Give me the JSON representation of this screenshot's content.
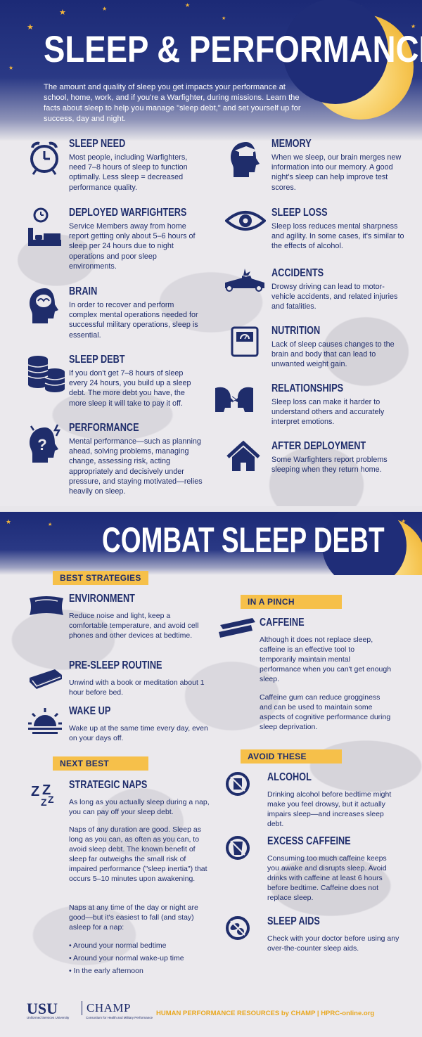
{
  "header": {
    "title": "SLEEP & PERFORMANCE",
    "intro": "The amount and quality of sleep you get impacts your performance at school, home, work, and if you're a Warfighter, during missions. Learn the facts about sleep to help you manage \"sleep debt,\" and set yourself up for success, day and night."
  },
  "facts_left": [
    {
      "title": "SLEEP NEED",
      "text": "Most people, including Warfighters, need 7–8 hours of sleep to function optimally. Less sleep = decreased performance quality.",
      "icon": "alarm-clock-icon"
    },
    {
      "title": "DEPLOYED WARFIGHTERS",
      "text": "Service Members away from home report getting only about 5–6 hours of sleep per 24 hours due to night operations and poor sleep environments.",
      "icon": "bed-clock-icon"
    },
    {
      "title": "BRAIN",
      "text": "In order to recover and perform complex mental operations needed for successful military operations, sleep is essential.",
      "icon": "brain-head-icon"
    },
    {
      "title": "SLEEP DEBT",
      "text": "If you don't get 7–8 hours of sleep every 24 hours, you build up a sleep debt. The more debt you have, the more sleep it will take to pay it off.",
      "icon": "coin-stack-icon"
    },
    {
      "title": "PERFORMANCE",
      "text": "Mental performance—such as planning ahead, solving problems, managing change, assessing risk, acting appropriately and decisively under pressure, and staying motivated—relies heavily on sleep.",
      "icon": "question-head-icon"
    }
  ],
  "facts_right": [
    {
      "title": "MEMORY",
      "text": "When we sleep, our brain merges new information into our memory. A good night's sleep can help improve test scores.",
      "icon": "graduation-head-icon"
    },
    {
      "title": "SLEEP LOSS",
      "text": "Sleep loss reduces mental sharpness and agility. In some cases, it's similar to the effects of alcohol.",
      "icon": "eye-icon"
    },
    {
      "title": "ACCIDENTS",
      "text": "Drowsy driving can lead to motor-vehicle accidents, and related injuries and fatalities.",
      "icon": "car-crash-icon"
    },
    {
      "title": "NUTRITION",
      "text": "Lack of sleep causes changes to the brain and body that can lead to unwanted weight gain.",
      "icon": "scale-icon"
    },
    {
      "title": "RELATIONSHIPS",
      "text": "Sleep loss can make it harder to understand others and accurately interpret emotions.",
      "icon": "two-heads-icon"
    },
    {
      "title": "AFTER DEPLOYMENT",
      "text": "Some Warfighters report problems sleeping when they return home.",
      "icon": "house-icon"
    }
  ],
  "combat": {
    "title": "COMBAT SLEEP DEBT",
    "best_label": "BEST STRATEGIES",
    "best": [
      {
        "title": "ENVIRONMENT",
        "text": "Reduce noise and light, keep a comfortable temperature, and avoid cell phones and other devices at bedtime.",
        "icon": "pillow-icon"
      },
      {
        "title": "PRE-SLEEP ROUTINE",
        "text": "Unwind with a book or meditation about 1 hour before bed.",
        "icon": "book-icon"
      },
      {
        "title": "WAKE UP",
        "text": "Wake up at the same time every day, even on your days off.",
        "icon": "sunrise-icon"
      }
    ],
    "next_label": "NEXT BEST",
    "naps": {
      "title": "STRATEGIC NAPS",
      "p1": "As long as you actually sleep during a nap, you can pay off your sleep debt.",
      "p2": "Naps of any duration are good. Sleep as long as you can, as often as you can, to avoid sleep debt. The known benefit of sleep far outweighs the small risk of impaired performance (\"sleep inertia\") that occurs 5–10 minutes upon awakening.",
      "p3": "Naps at any time of the day or night are good—but it's easiest to fall (and stay) asleep for a nap:",
      "bullets": [
        "Around your normal bedtime",
        "Around your normal wake-up time",
        "In the early afternoon"
      ],
      "icon": "zzz-icon"
    },
    "pinch_label": "IN A PINCH",
    "caffeine": {
      "title": "CAFFEINE",
      "p1": "Although it does not replace sleep, caffeine is an effective tool to temporarily maintain mental performance when you can't get enough sleep.",
      "p2": "Caffeine gum can reduce grogginess and can be used to maintain some aspects of cognitive performance during sleep deprivation.",
      "icon": "gum-icon"
    },
    "avoid_label": "AVOID THESE",
    "avoid": [
      {
        "title": "ALCOHOL",
        "text": "Drinking alcohol before bedtime might make you feel drowsy, but it actually impairs sleep—and increases sleep debt.",
        "icon": "no-alcohol-icon"
      },
      {
        "title": "EXCESS CAFFEINE",
        "text": "Consuming too much caffeine keeps you awake and disrupts sleep. Avoid drinks with caffeine at least 6 hours before bedtime. Caffeine does not replace sleep.",
        "icon": "no-caffeine-icon"
      },
      {
        "title": "SLEEP AIDS",
        "text": "Check with your doctor before using any over-the-counter sleep aids.",
        "icon": "no-pills-icon"
      }
    ]
  },
  "footer": {
    "usu": "USU",
    "usu_sub": "Uniformed Services University",
    "champ": "CHAMP",
    "champ_sub": "Consortium for Health and Military Performance",
    "hpr": "HUMAN PERFORMANCE RESOURCES by CHAMP | HPRC-online.org"
  },
  "colors": {
    "navy": "#1f2d6b",
    "gold": "#f6c04a",
    "sky": "#1c2a76"
  }
}
